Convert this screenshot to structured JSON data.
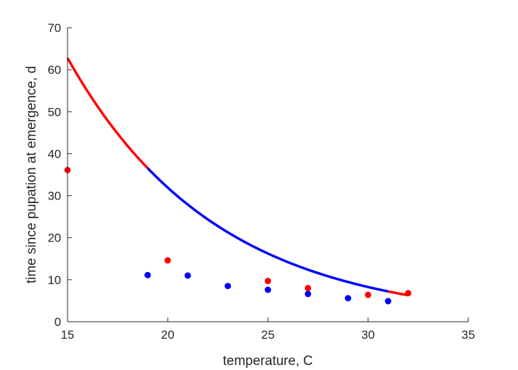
{
  "chart_data": {
    "type": "scatter",
    "title": "",
    "xlabel": "temperature, C",
    "ylabel": "time since pupation at emergence, d",
    "xlim": [
      15,
      35
    ],
    "ylim": [
      0,
      70
    ],
    "xticks": [
      15,
      20,
      25,
      30,
      35
    ],
    "yticks": [
      0,
      10,
      20,
      30,
      40,
      50,
      60,
      70
    ],
    "grid": false,
    "legend": "none",
    "colors": {
      "red": "#ff0000",
      "blue": "#0000ff",
      "axis": "#262626"
    },
    "curve": {
      "model": "y = 62.8 * exp(-k * (x - 15)), y(32) = 6.3",
      "y_at_15": 62.8,
      "y_at_32": 6.3,
      "segments": [
        {
          "color": "red",
          "x_range": [
            15,
            19
          ]
        },
        {
          "color": "blue",
          "x_range": [
            19,
            31
          ]
        },
        {
          "color": "red",
          "x_range": [
            31,
            32
          ]
        }
      ]
    },
    "series": [
      {
        "color": "red",
        "points": [
          {
            "x": 15,
            "y": 36.1
          },
          {
            "x": 20,
            "y": 14.6
          },
          {
            "x": 25,
            "y": 9.7
          },
          {
            "x": 27,
            "y": 8.0
          },
          {
            "x": 30,
            "y": 6.4
          },
          {
            "x": 32,
            "y": 6.8
          }
        ]
      },
      {
        "color": "blue",
        "points": [
          {
            "x": 19,
            "y": 11.1
          },
          {
            "x": 21,
            "y": 11.0
          },
          {
            "x": 23,
            "y": 8.5
          },
          {
            "x": 25,
            "y": 7.6
          },
          {
            "x": 27,
            "y": 6.6
          },
          {
            "x": 29,
            "y": 5.6
          },
          {
            "x": 31,
            "y": 4.9
          }
        ]
      }
    ]
  }
}
